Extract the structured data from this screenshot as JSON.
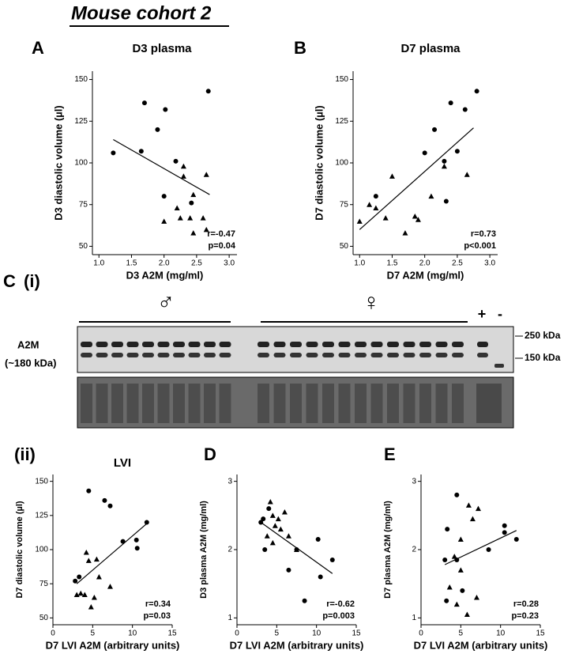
{
  "figure": {
    "heading": "Mouse cohort 2",
    "blot_panel": "C",
    "blot_subpanel": "(i)",
    "male": "♂",
    "female": "♀",
    "plus": "+",
    "minus": "-",
    "protein": "A2M",
    "protein_size": "(~180 kDa)",
    "marker_high": "250 kDa",
    "marker_low": "150 kDa"
  },
  "chart_data": [
    {
      "type": "scatter",
      "panel": "A",
      "title": "D3 plasma",
      "xlabel": "D3 A2M (mg/ml)",
      "ylabel": "D3 diastolic volume (µl)",
      "xlim": [
        0.9,
        3.12
      ],
      "ylim": [
        45,
        155
      ],
      "xticks": [
        {
          "value": 1,
          "label": "1.0"
        },
        {
          "value": 1.5,
          "label": "1.5"
        },
        {
          "value": 2,
          "label": "2.0"
        },
        {
          "value": 2.5,
          "label": "2.5"
        },
        {
          "value": 3,
          "label": "3.0"
        }
      ],
      "yticks": [
        50,
        75,
        100,
        125,
        150
      ],
      "series": [
        {
          "marker": "circle",
          "color": "#000000",
          "x": [
            1.22,
            1.65,
            1.7,
            1.9,
            2.02,
            2.0,
            2.18,
            2.68,
            2.42
          ],
          "values": [
            106,
            107,
            136,
            120,
            132,
            80,
            101,
            143,
            76
          ]
        },
        {
          "marker": "triangle",
          "color": "#000000",
          "x": [
            2.3,
            2.3,
            2.65,
            2.2,
            2.0,
            2.25,
            2.4,
            2.45,
            2.6,
            2.65,
            2.45
          ],
          "values": [
            98,
            92,
            93,
            73,
            65,
            67,
            67,
            81,
            67,
            60,
            58
          ]
        }
      ],
      "fit": {
        "x": [
          1.22,
          2.7
        ],
        "values": [
          114,
          81
        ]
      },
      "annotations": [
        "r=-0.47",
        "p=0.04"
      ]
    },
    {
      "type": "scatter",
      "panel": "B",
      "title": "D7 plasma",
      "xlabel": "D7 A2M (mg/ml)",
      "ylabel": "D7 diastolic volume (µl)",
      "xlim": [
        0.9,
        3.12
      ],
      "ylim": [
        45,
        155
      ],
      "xticks": [
        {
          "value": 1,
          "label": "1.0"
        },
        {
          "value": 1.5,
          "label": "1.5"
        },
        {
          "value": 2,
          "label": "2.0"
        },
        {
          "value": 2.5,
          "label": "2.5"
        },
        {
          "value": 3,
          "label": "3.0"
        }
      ],
      "yticks": [
        50,
        75,
        100,
        125,
        150
      ],
      "series": [
        {
          "marker": "circle",
          "color": "#000000",
          "x": [
            2.8,
            2.4,
            2.62,
            2.15,
            2.0,
            2.5,
            2.3,
            1.25,
            2.33
          ],
          "values": [
            143,
            136,
            132,
            120,
            106,
            107,
            101,
            80,
            77
          ]
        },
        {
          "marker": "triangle",
          "color": "#000000",
          "x": [
            1.0,
            1.15,
            1.25,
            1.4,
            1.5,
            1.7,
            1.85,
            1.9,
            2.1,
            2.3,
            2.65
          ],
          "values": [
            65,
            75,
            73,
            67,
            92,
            58,
            68,
            66,
            80,
            98,
            93
          ]
        }
      ],
      "fit": {
        "x": [
          1.0,
          2.75
        ],
        "values": [
          60,
          121
        ]
      },
      "annotations": [
        "r=0.73",
        "p<0.001"
      ]
    },
    {
      "type": "scatter",
      "panel": "(ii)",
      "title": "LVI",
      "xlabel": "D7 LVI A2M (arbitrary units)",
      "ylabel": "D7 diastolic volume (µl)",
      "xlim": [
        0,
        15
      ],
      "ylim": [
        45,
        155
      ],
      "xticks": [
        0,
        5,
        10,
        15
      ],
      "yticks": [
        50,
        75,
        100,
        125,
        150
      ],
      "series": [
        {
          "marker": "circle",
          "color": "#000000",
          "x": [
            4.5,
            6.5,
            7.2,
            11.8,
            8.8,
            10.5,
            10.6,
            3.3,
            2.8
          ],
          "values": [
            143,
            136,
            132,
            120,
            106,
            107,
            101,
            80,
            77
          ]
        },
        {
          "marker": "triangle",
          "color": "#000000",
          "x": [
            4.2,
            4.5,
            5.5,
            3.5,
            4.0,
            3.0,
            4.8,
            5.8,
            5.2,
            7.2
          ],
          "values": [
            98,
            92,
            93,
            68,
            67,
            67,
            58,
            80,
            65,
            73
          ]
        }
      ],
      "fit": {
        "x": [
          3.0,
          12.0
        ],
        "values": [
          75,
          120
        ]
      },
      "annotations": [
        "r=0.34",
        "p=0.03"
      ]
    },
    {
      "type": "scatter",
      "panel": "D",
      "xlabel": "D7 LVI A2M (arbitrary units)",
      "ylabel": "D3 plasma A2M (mg/ml)",
      "xlim": [
        0,
        15
      ],
      "ylim": [
        0.9,
        3.1
      ],
      "xticks": [
        0,
        5,
        10,
        15
      ],
      "yticks": [
        1,
        2,
        3
      ],
      "series": [
        {
          "marker": "circle",
          "color": "#000000",
          "x": [
            3.0,
            3.3,
            4.0,
            3.5,
            7.5,
            10.2,
            12.0,
            10.5,
            8.5,
            6.5
          ],
          "values": [
            2.4,
            2.45,
            2.6,
            2.0,
            2.0,
            2.15,
            1.85,
            1.6,
            1.25,
            1.7
          ]
        },
        {
          "marker": "triangle",
          "color": "#000000",
          "x": [
            4.2,
            4.5,
            5.2,
            6.0,
            4.8,
            3.8,
            4.5,
            5.5,
            6.5,
            7.5
          ],
          "values": [
            2.7,
            2.5,
            2.45,
            2.55,
            2.35,
            2.2,
            2.1,
            2.3,
            2.2,
            2.0
          ]
        }
      ],
      "fit": {
        "x": [
          3.0,
          12.0
        ],
        "values": [
          2.4,
          1.65
        ]
      },
      "annotations": [
        "r=-0.62",
        "p=0.003"
      ]
    },
    {
      "type": "scatter",
      "panel": "E",
      "xlabel": "D7 LVI A2M (arbitrary units)",
      "ylabel": "D7 plasma A2M (mg/ml)",
      "xlim": [
        0,
        15
      ],
      "ylim": [
        0.9,
        3.1
      ],
      "xticks": [
        0,
        5,
        10,
        15
      ],
      "yticks": [
        1,
        2,
        3
      ],
      "series": [
        {
          "marker": "circle",
          "color": "#000000",
          "x": [
            4.5,
            10.5,
            10.5,
            12.0,
            8.5,
            3.3,
            3.0,
            4.5,
            3.2,
            5.2
          ],
          "values": [
            2.8,
            2.35,
            2.25,
            2.15,
            2.0,
            2.3,
            1.85,
            1.85,
            1.25,
            1.4
          ]
        },
        {
          "marker": "triangle",
          "color": "#000000",
          "x": [
            6.0,
            7.2,
            6.5,
            5.0,
            5.0,
            3.6,
            4.5,
            5.8,
            7.0,
            4.2
          ],
          "values": [
            2.65,
            2.6,
            2.45,
            2.15,
            1.7,
            1.45,
            1.2,
            1.05,
            1.3,
            1.9
          ]
        }
      ],
      "fit": {
        "x": [
          3.0,
          12.0
        ],
        "values": [
          1.78,
          2.28
        ]
      },
      "annotations": [
        "r=0.28",
        "p=0.23"
      ]
    }
  ]
}
